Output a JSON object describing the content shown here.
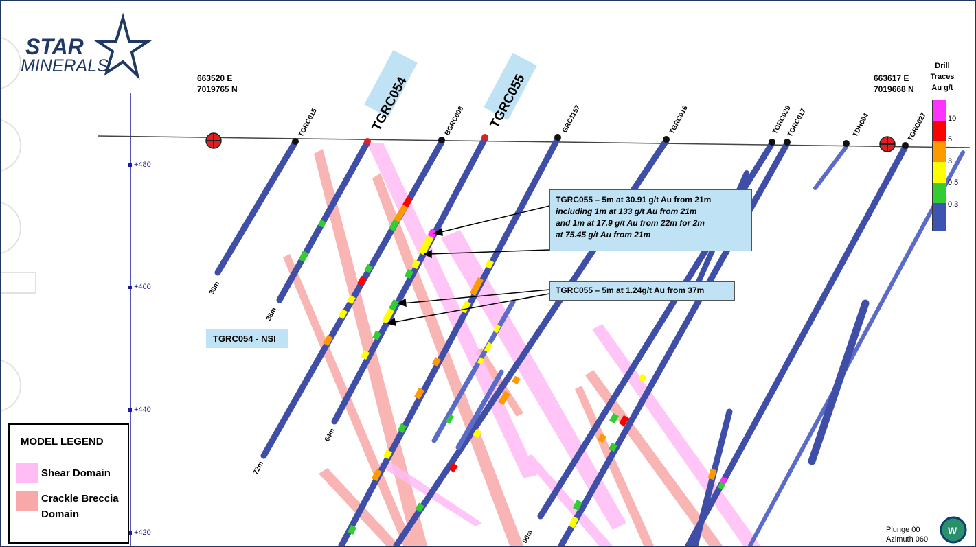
{
  "logo": {
    "word1": "STAR",
    "word2": "MINERALS"
  },
  "coords": {
    "left_e": "663520 E",
    "left_n": "7019765 N",
    "right_e": "663617 E",
    "right_n": "7019668 N"
  },
  "rl_labels": [
    "+480",
    "+460",
    "+440",
    "+420"
  ],
  "hole_labels": {
    "tgrc015": "TGRC015",
    "tgrc054": "TGRC054",
    "bgrc008": "BGRC008",
    "tgrc055": "TGRC055",
    "grc1157": "GRC1157",
    "tgrc016": "TGRC016",
    "tgrc029": "TGRC029",
    "tgrc017": "TGRC017",
    "tdh004": "TDH004",
    "tgrc027": "TGRC027"
  },
  "depth_labels": {
    "d30": "30m",
    "d36": "36m",
    "d72": "72m",
    "d64": "64m",
    "d90": "90m"
  },
  "callouts": {
    "main_line1": "TGRC055 – 5m at 30.91 g/t Au from  21m",
    "main_line2": "including 1m at 133 g/t Au from 21m",
    "main_line3": "and 1m at 17.9 g/t Au from 22m for 2m",
    "main_line4": "at 75.45 g/t Au from 21m",
    "second": "TGRC055 – 5m at 1.24g/t Au from  37m",
    "nsi": "TGRC054 - NSI"
  },
  "legend": {
    "title": "MODEL LEGEND",
    "shear": "Shear Domain",
    "crackle_1": "Crackle Breccia",
    "crackle_2": "Domain"
  },
  "scale": {
    "title_1": "Drill",
    "title_2": "Traces",
    "title_3": "Au g/t",
    "ticks": [
      "10",
      "5",
      "3",
      "0.5",
      "0.3"
    ],
    "colors": [
      "#ff33ff",
      "#ff0000",
      "#ff9900",
      "#ffff00",
      "#33cc33",
      "#3d55b0"
    ]
  },
  "orientation": {
    "plunge": "Plunge 00",
    "azimuth": "Azimuth 060"
  },
  "colors": {
    "shear": "#ffbcf5",
    "crackle": "#f8a8a8",
    "drill": "#3f4fa8",
    "rl_axis": "#1a1aa6",
    "logo": "#1f3864"
  }
}
